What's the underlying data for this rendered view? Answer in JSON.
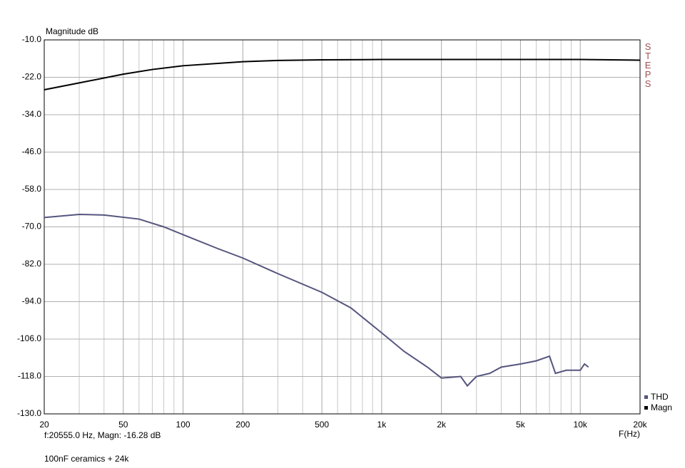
{
  "chart_data": {
    "type": "line",
    "y_label": "Magnitude dB",
    "x_label": "F(Hz)",
    "side_label": "STEPS",
    "cursor_readout": "f:20555.0 Hz, Magn: -16.28 dB",
    "note": "100nF ceramics + 24k",
    "log_x": true,
    "grid": true,
    "xlim": [
      20,
      20000
    ],
    "xticks": [
      20,
      50,
      100,
      200,
      500,
      {
        "value": 1000,
        "label": "1k"
      },
      {
        "value": 2000,
        "label": "2k"
      },
      {
        "value": 5000,
        "label": "5k"
      },
      {
        "value": 10000,
        "label": "10k"
      },
      {
        "value": 20000,
        "label": "20k"
      }
    ],
    "xgrid_minor": [
      30,
      40,
      60,
      70,
      80,
      90,
      300,
      400,
      600,
      700,
      800,
      900,
      3000,
      4000,
      6000,
      7000,
      8000,
      9000
    ],
    "ylim": [
      -130,
      -10
    ],
    "yticks": [
      {
        "value": -10,
        "label": "-10.0"
      },
      {
        "value": -22,
        "label": "-22.0"
      },
      {
        "value": -34,
        "label": "-34.0"
      },
      {
        "value": -46,
        "label": "-46.0"
      },
      {
        "value": -58,
        "label": "-58.0"
      },
      {
        "value": -70,
        "label": "-70.0"
      },
      {
        "value": -82,
        "label": "-82.0"
      },
      {
        "value": -94,
        "label": "-94.0"
      },
      {
        "value": -106,
        "label": "-106.0"
      },
      {
        "value": -118,
        "label": "-118.0"
      },
      {
        "value": -130,
        "label": "-130.0"
      }
    ],
    "series": [
      {
        "name": "THD",
        "color": "#55557f",
        "x": [
          20,
          30,
          40,
          60,
          80,
          100,
          150,
          200,
          300,
          500,
          700,
          1000,
          1300,
          1700,
          2000,
          2300,
          2500,
          2700,
          3000,
          3500,
          4000,
          5000,
          6000,
          7000,
          7500,
          8500,
          10000,
          10500,
          11000
        ],
        "values": [
          -67,
          -66,
          -66.2,
          -67.5,
          -70,
          -72.5,
          -77,
          -80,
          -85,
          -91,
          -96,
          -104,
          -110,
          -115,
          -118.5,
          -118.2,
          -118,
          -121,
          -118,
          -117,
          -115,
          -114,
          -113,
          -111.5,
          -117,
          -116,
          -116,
          -114,
          -115
        ]
      },
      {
        "name": "Magn",
        "color": "#000000",
        "x": [
          20,
          30,
          50,
          70,
          100,
          200,
          300,
          500,
          1000,
          5000,
          10000,
          20000
        ],
        "values": [
          -26,
          -23.8,
          -21,
          -19.5,
          -18.3,
          -17,
          -16.6,
          -16.4,
          -16.3,
          -16.3,
          -16.3,
          -16.5
        ]
      }
    ]
  }
}
